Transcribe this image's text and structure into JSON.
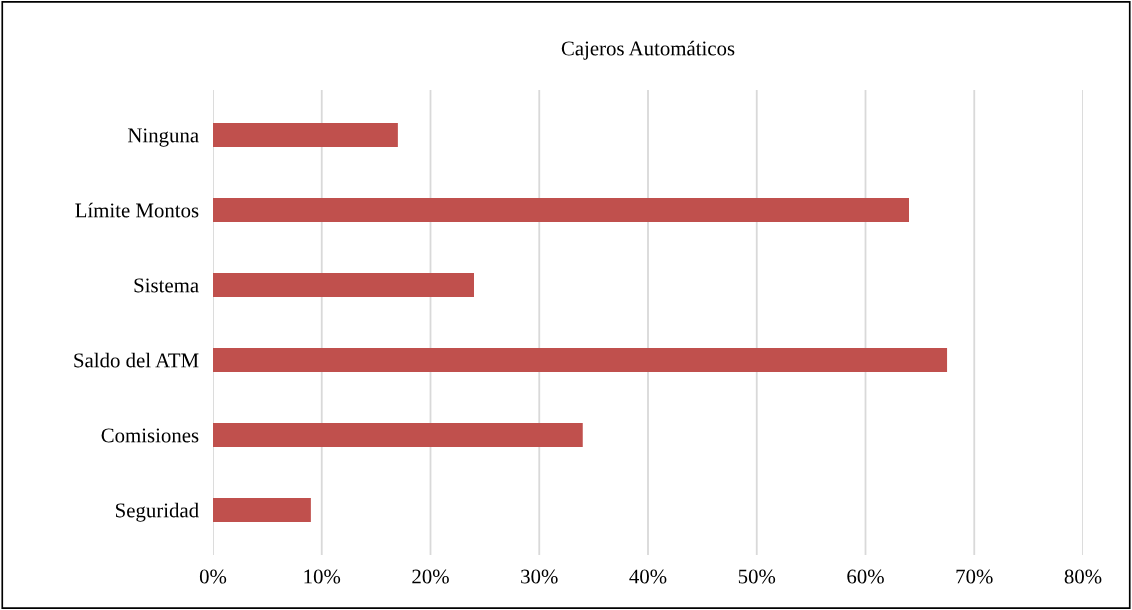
{
  "chart_data": {
    "type": "bar",
    "orientation": "horizontal",
    "title": "Cajeros Automáticos",
    "categories": [
      "Ninguna",
      "Límite Montos",
      "Sistema",
      "Saldo del ATM",
      "Comisiones",
      "Seguridad"
    ],
    "values": [
      17,
      64,
      24,
      67.5,
      34,
      9
    ],
    "color": "#c0504d",
    "xlim": [
      0,
      80
    ],
    "xticks": [
      {
        "value": 0,
        "label": "0%"
      },
      {
        "value": 10,
        "label": "10%"
      },
      {
        "value": 20,
        "label": "20%"
      },
      {
        "value": 30,
        "label": "30%"
      },
      {
        "value": 40,
        "label": "40%"
      },
      {
        "value": 50,
        "label": "50%"
      },
      {
        "value": 60,
        "label": "60%"
      },
      {
        "value": 70,
        "label": "70%"
      },
      {
        "value": 80,
        "label": "80%"
      }
    ],
    "grid": "x",
    "legend": false
  }
}
